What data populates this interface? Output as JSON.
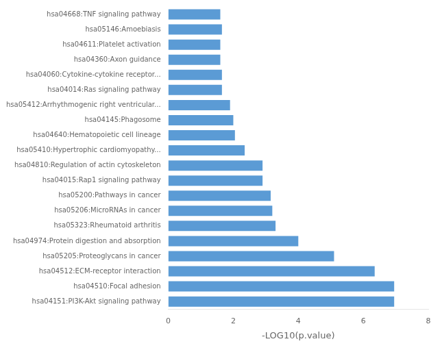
{
  "chart_data": {
    "type": "bar",
    "orientation": "horizontal",
    "categories": [
      "hsa04151:PI3K-Akt signaling pathway",
      "hsa04510:Focal adhesion",
      "hsa04512:ECM-receptor interaction",
      "hsa05205:Proteoglycans in cancer",
      "hsa04974:Protein digestion and absorption",
      "hsa05323:Rheumatoid arthritis",
      "hsa05206:MicroRNAs in cancer",
      "hsa05200:Pathways in cancer",
      "hsa04015:Rap1 signaling pathway",
      "hsa04810:Regulation of actin cytoskeleton",
      "hsa05410:Hypertrophic cardiomyopathy...",
      "hsa04640:Hematopoietic cell lineage",
      "hsa04145:Phagosome",
      "hsa05412:Arrhythmogenic right ventricular...",
      "hsa04014:Ras signaling pathway",
      "hsa04060:Cytokine-cytokine receptor...",
      "hsa04360:Axon guidance",
      "hsa04611:Platelet activation",
      "hsa05146:Amoebiasis",
      "hsa04668:TNF signaling pathway"
    ],
    "values": [
      6.95,
      6.95,
      6.35,
      5.1,
      4.0,
      3.3,
      3.2,
      3.15,
      2.9,
      2.9,
      2.35,
      2.05,
      2.0,
      1.9,
      1.65,
      1.65,
      1.6,
      1.6,
      1.65,
      1.6
    ],
    "color": "#5B9BD5",
    "xlabel": "-LOG10(p.value)",
    "xlim": [
      0,
      8
    ],
    "xticks": [
      0,
      2,
      4,
      6,
      8
    ],
    "grid": false
  }
}
